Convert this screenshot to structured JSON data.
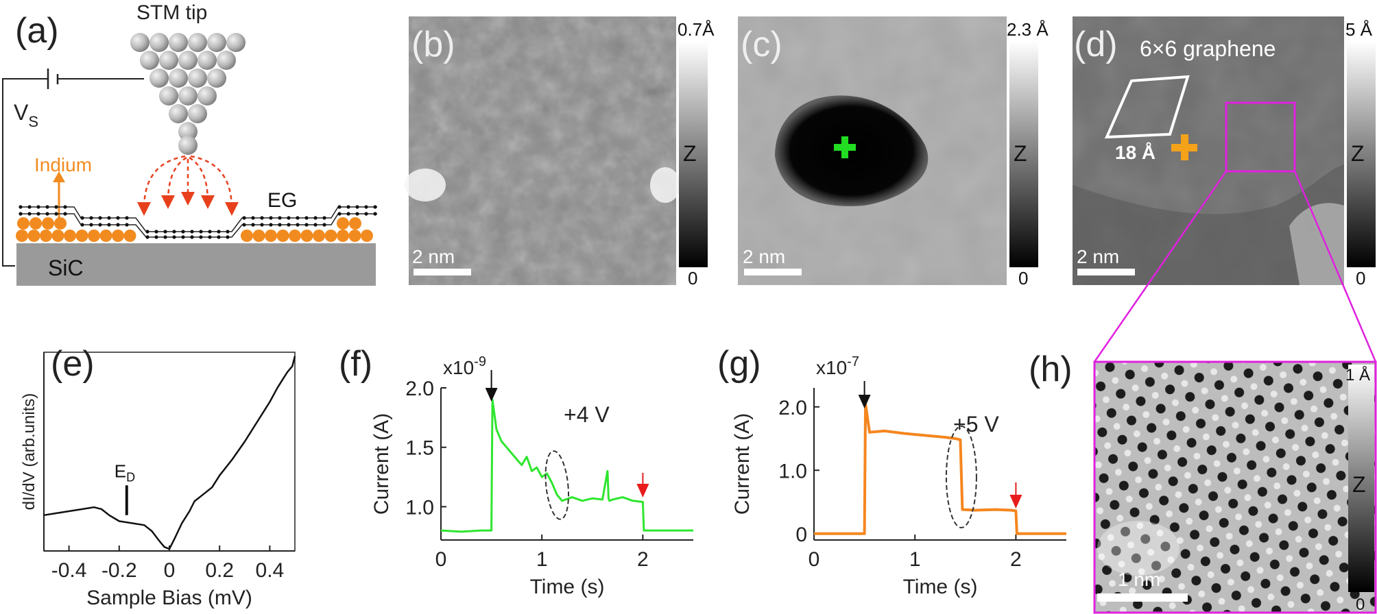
{
  "panels": {
    "a": {
      "label": "(a)",
      "tip_label": "STM tip",
      "bias_label": "V",
      "bias_sub": "S",
      "indium_label": "Indium",
      "eg_label": "EG",
      "substrate_label": "SiC",
      "colors": {
        "atom": "#b3b3b3",
        "indium": "#f28b1f",
        "substrate": "#9a9a9a",
        "arrow": "#e8401c"
      }
    },
    "b": {
      "label": "(b)",
      "scale_top": "0.7Å",
      "scale_mid": "Z",
      "scale_bottom": "0",
      "scalebar": "2 nm"
    },
    "c": {
      "label": "(c)",
      "scale_top": "2.3 Å",
      "scale_mid": "Z",
      "scale_bottom": "0",
      "scalebar": "2 nm",
      "marker_color": "#22dd22"
    },
    "d": {
      "label": "(d)",
      "title": "6×6 graphene",
      "cell_label": "18 Å",
      "scale_top": "5 Å",
      "scale_mid": "Z",
      "scale_bottom": "0",
      "scalebar": "2 nm",
      "marker_color": "#f5a21b",
      "box_color": "#e020e0"
    },
    "h": {
      "label": "(h)",
      "scale_top": "1 Å",
      "scale_mid": "Z",
      "scale_bottom": "0",
      "scalebar": "1 nm"
    }
  },
  "chart_data": [
    {
      "id": "e",
      "type": "line",
      "label": "(e)",
      "xlabel": "Sample Bias (mV)",
      "ylabel": "dI/dV (arb.units)",
      "xlim": [
        -0.5,
        0.5
      ],
      "ylim": [
        0,
        1
      ],
      "xticks": [
        -0.4,
        -0.2,
        0,
        0.2,
        0.4
      ],
      "xtick_labels": [
        "-0.4",
        "-0.2",
        "0",
        "0.2",
        "0.4"
      ],
      "annotation": {
        "text": "E",
        "sub": "D",
        "x": -0.17
      },
      "series": [
        {
          "color": "#111111",
          "x": [
            -0.5,
            -0.45,
            -0.4,
            -0.35,
            -0.3,
            -0.27,
            -0.24,
            -0.2,
            -0.15,
            -0.1,
            -0.07,
            -0.04,
            -0.02,
            0.0,
            0.02,
            0.05,
            0.08,
            0.1,
            0.13,
            0.17,
            0.2,
            0.25,
            0.3,
            0.35,
            0.4,
            0.43,
            0.45,
            0.47,
            0.49,
            0.5
          ],
          "y": [
            0.18,
            0.19,
            0.2,
            0.21,
            0.22,
            0.21,
            0.18,
            0.15,
            0.14,
            0.13,
            0.1,
            0.05,
            0.02,
            0.01,
            0.06,
            0.14,
            0.2,
            0.25,
            0.28,
            0.32,
            0.38,
            0.46,
            0.55,
            0.65,
            0.75,
            0.82,
            0.86,
            0.9,
            0.93,
            0.98
          ]
        }
      ]
    },
    {
      "id": "f",
      "type": "line",
      "label": "(f)",
      "xlabel": "Time (s)",
      "ylabel": "Current (A)",
      "exponent": "x10",
      "exponent_power": "-9",
      "xlim": [
        0,
        2.5
      ],
      "ylim": [
        0.72,
        2.0
      ],
      "xticks": [
        0,
        1,
        2
      ],
      "xtick_labels": [
        "0",
        "1",
        "2"
      ],
      "yticks": [
        1.0,
        1.5,
        2.0
      ],
      "ytick_labels": [
        "1.0",
        "1.5",
        "2.0"
      ],
      "annotation": "+4 V",
      "series": [
        {
          "color": "#2ee62e",
          "x": [
            0,
            0.2,
            0.4,
            0.5,
            0.51,
            0.55,
            0.6,
            0.65,
            0.7,
            0.75,
            0.8,
            0.85,
            0.9,
            0.95,
            1.0,
            1.05,
            1.1,
            1.15,
            1.2,
            1.3,
            1.4,
            1.5,
            1.6,
            1.65,
            1.66,
            1.67,
            1.7,
            1.8,
            1.9,
            2.0,
            2.01,
            2.2,
            2.5
          ],
          "y": [
            0.8,
            0.79,
            0.8,
            0.8,
            1.9,
            1.65,
            1.55,
            1.5,
            1.45,
            1.4,
            1.35,
            1.42,
            1.3,
            1.33,
            1.25,
            1.28,
            1.2,
            1.1,
            1.05,
            1.08,
            1.05,
            1.07,
            1.06,
            1.3,
            1.07,
            1.05,
            1.06,
            1.08,
            1.05,
            1.04,
            0.8,
            0.8,
            0.8
          ]
        }
      ]
    },
    {
      "id": "g",
      "type": "line",
      "label": "(g)",
      "xlabel": "Time (s)",
      "ylabel": "Current (A)",
      "exponent": "x10",
      "exponent_power": "-7",
      "xlim": [
        0,
        2.5
      ],
      "ylim": [
        -0.1,
        2.3
      ],
      "xticks": [
        0,
        1,
        2
      ],
      "xtick_labels": [
        "0",
        "1",
        "2"
      ],
      "yticks": [
        0,
        1.0,
        2.0
      ],
      "ytick_labels": [
        "0",
        "1.0",
        "2.0"
      ],
      "annotation": "+5 V",
      "series": [
        {
          "color": "#f5861f",
          "x": [
            0,
            0.2,
            0.4,
            0.5,
            0.51,
            0.55,
            0.7,
            0.9,
            1.1,
            1.3,
            1.4,
            1.45,
            1.47,
            1.6,
            1.8,
            1.95,
            2.0,
            2.01,
            2.2,
            2.5
          ],
          "y": [
            0.0,
            0.0,
            0.0,
            0.0,
            2.05,
            1.6,
            1.62,
            1.58,
            1.55,
            1.52,
            1.5,
            1.48,
            0.38,
            0.37,
            0.38,
            0.37,
            0.36,
            0.0,
            0.0,
            0.0
          ]
        }
      ]
    }
  ]
}
